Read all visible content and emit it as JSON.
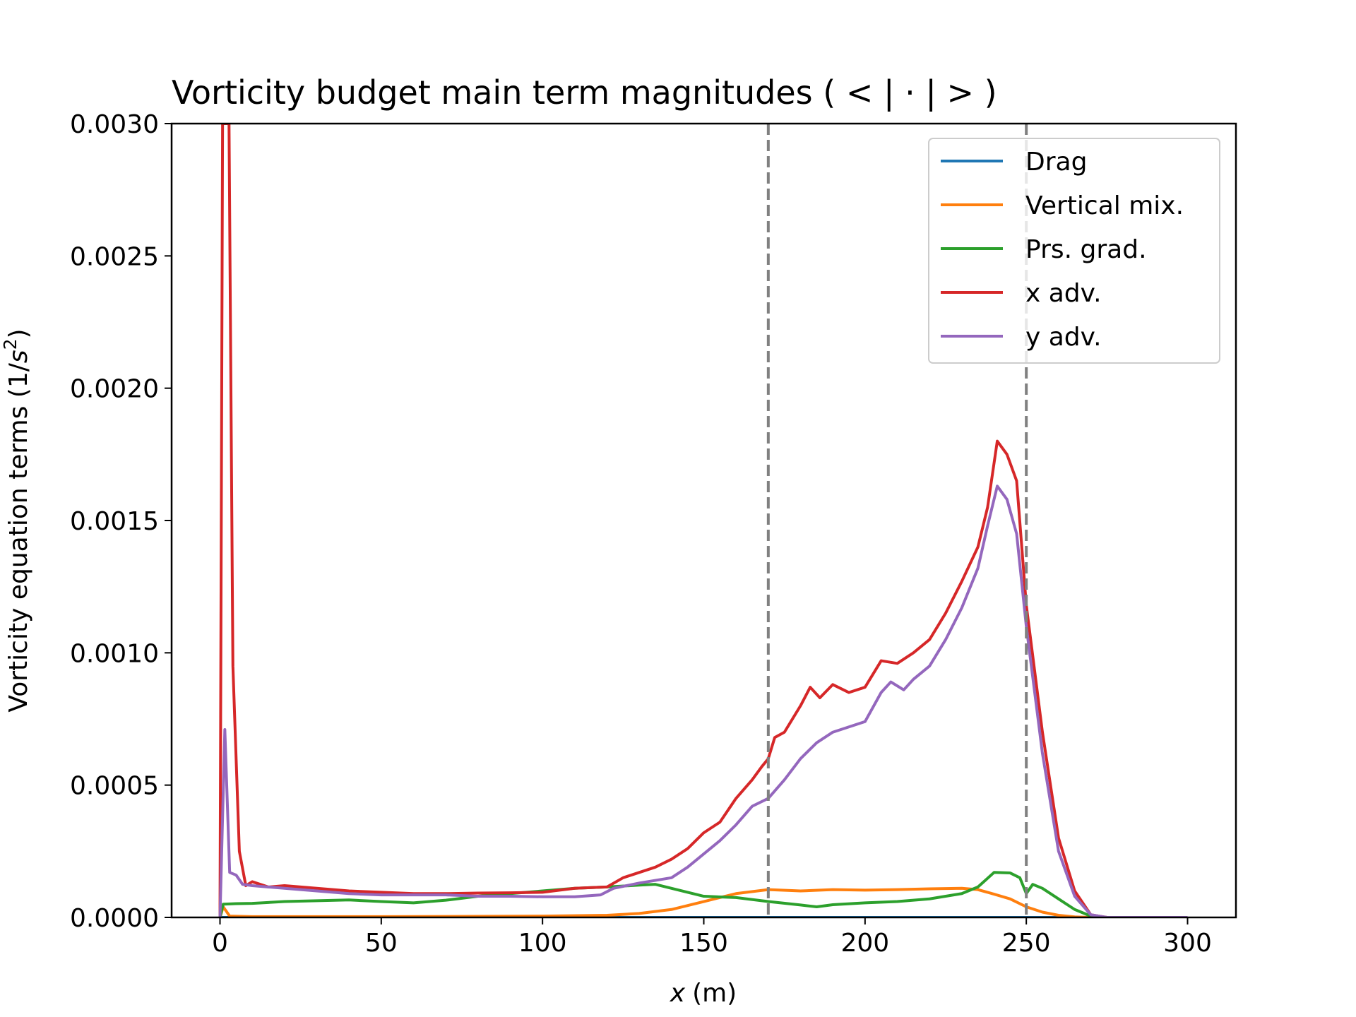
{
  "chart_data": {
    "type": "line",
    "title": "Vorticity budget main term magnitudes ( < | · | > )",
    "xlabel_var": "x",
    "xlabel_unit": "(m)",
    "ylabel_main": "Vorticity equation terms (1/",
    "ylabel_var": "s",
    "ylabel_exp": "2",
    "ylabel_end": ")",
    "xlim": [
      -15,
      315
    ],
    "ylim": [
      0,
      0.003
    ],
    "x_ticks": [
      0,
      50,
      100,
      150,
      200,
      250,
      300
    ],
    "x_tick_labels": [
      "0",
      "50",
      "100",
      "150",
      "200",
      "250",
      "300"
    ],
    "y_ticks": [
      0,
      0.0005,
      0.001,
      0.0015,
      0.002,
      0.0025,
      0.003
    ],
    "y_tick_labels": [
      "0.0000",
      "0.0005",
      "0.0010",
      "0.0015",
      "0.0020",
      "0.0025",
      "0.0030"
    ],
    "vertical_lines": [
      170,
      250
    ],
    "grid": false,
    "legend_position": "top-right",
    "series": [
      {
        "name": "Drag",
        "color": "#1f77b4",
        "points": [
          [
            0,
            0
          ],
          [
            300,
            0
          ]
        ]
      },
      {
        "name": "Vertical mix.",
        "color": "#ff7f0e",
        "points": [
          [
            0,
            0
          ],
          [
            1,
            4e-05
          ],
          [
            3,
            5e-06
          ],
          [
            10,
            3e-06
          ],
          [
            50,
            3e-06
          ],
          [
            100,
            5e-06
          ],
          [
            120,
            8e-06
          ],
          [
            130,
            1.5e-05
          ],
          [
            140,
            3e-05
          ],
          [
            150,
            6e-05
          ],
          [
            160,
            9e-05
          ],
          [
            170,
            0.000105
          ],
          [
            180,
            0.0001
          ],
          [
            190,
            0.000105
          ],
          [
            200,
            0.000103
          ],
          [
            210,
            0.000105
          ],
          [
            220,
            0.000108
          ],
          [
            230,
            0.00011
          ],
          [
            235,
            0.000105
          ],
          [
            240,
            8.8e-05
          ],
          [
            245,
            7e-05
          ],
          [
            250,
            4e-05
          ],
          [
            255,
            2e-05
          ],
          [
            260,
            8e-06
          ],
          [
            265,
            2e-06
          ],
          [
            270,
            0
          ],
          [
            300,
            0
          ]
        ]
      },
      {
        "name": "Prs. grad.",
        "color": "#2ca02c",
        "points": [
          [
            0,
            0
          ],
          [
            1,
            5e-05
          ],
          [
            5,
            5.2e-05
          ],
          [
            10,
            5.3e-05
          ],
          [
            20,
            6e-05
          ],
          [
            30,
            6.3e-05
          ],
          [
            40,
            6.6e-05
          ],
          [
            50,
            6e-05
          ],
          [
            60,
            5.5e-05
          ],
          [
            70,
            6.5e-05
          ],
          [
            80,
            8e-05
          ],
          [
            90,
            9e-05
          ],
          [
            100,
            0.0001
          ],
          [
            110,
            0.00011
          ],
          [
            120,
            0.000115
          ],
          [
            130,
            0.000122
          ],
          [
            135,
            0.000125
          ],
          [
            140,
            0.00011
          ],
          [
            150,
            8e-05
          ],
          [
            160,
            7.5e-05
          ],
          [
            170,
            6e-05
          ],
          [
            180,
            4.7e-05
          ],
          [
            185,
            4e-05
          ],
          [
            190,
            4.8e-05
          ],
          [
            200,
            5.5e-05
          ],
          [
            210,
            6e-05
          ],
          [
            220,
            7e-05
          ],
          [
            230,
            9e-05
          ],
          [
            235,
            0.000115
          ],
          [
            240,
            0.00017
          ],
          [
            245,
            0.000168
          ],
          [
            248,
            0.00015
          ],
          [
            250,
            9e-05
          ],
          [
            252,
            0.000125
          ],
          [
            255,
            0.00011
          ],
          [
            260,
            7e-05
          ],
          [
            265,
            3e-05
          ],
          [
            270,
            5e-06
          ],
          [
            275,
            0
          ],
          [
            300,
            0
          ]
        ]
      },
      {
        "name": "x adv.",
        "color": "#d62728",
        "points": [
          [
            0,
            0
          ],
          [
            0.8,
            0.003
          ],
          [
            2.8,
            0.003
          ],
          [
            4,
            0.00095
          ],
          [
            6,
            0.00025
          ],
          [
            8,
            0.00012
          ],
          [
            10,
            0.000135
          ],
          [
            15,
            0.000115
          ],
          [
            20,
            0.00012
          ],
          [
            30,
            0.00011
          ],
          [
            40,
            0.0001
          ],
          [
            50,
            9.5e-05
          ],
          [
            60,
            9e-05
          ],
          [
            70,
            9e-05
          ],
          [
            80,
            9.2e-05
          ],
          [
            90,
            9.3e-05
          ],
          [
            100,
            9.5e-05
          ],
          [
            110,
            0.00011
          ],
          [
            120,
            0.000115
          ],
          [
            125,
            0.00015
          ],
          [
            130,
            0.00017
          ],
          [
            135,
            0.00019
          ],
          [
            140,
            0.00022
          ],
          [
            145,
            0.00026
          ],
          [
            150,
            0.00032
          ],
          [
            155,
            0.00036
          ],
          [
            160,
            0.00045
          ],
          [
            165,
            0.00052
          ],
          [
            168,
            0.00057
          ],
          [
            170,
            0.0006
          ],
          [
            172,
            0.00068
          ],
          [
            175,
            0.0007
          ],
          [
            180,
            0.0008
          ],
          [
            183,
            0.00087
          ],
          [
            186,
            0.00083
          ],
          [
            190,
            0.00088
          ],
          [
            195,
            0.00085
          ],
          [
            200,
            0.00087
          ],
          [
            205,
            0.00097
          ],
          [
            210,
            0.00096
          ],
          [
            215,
            0.001
          ],
          [
            220,
            0.00105
          ],
          [
            225,
            0.00115
          ],
          [
            230,
            0.00127
          ],
          [
            235,
            0.0014
          ],
          [
            238,
            0.00155
          ],
          [
            241,
            0.0018
          ],
          [
            244,
            0.00175
          ],
          [
            247,
            0.00165
          ],
          [
            250,
            0.00118
          ],
          [
            255,
            0.0007
          ],
          [
            260,
            0.0003
          ],
          [
            265,
            0.0001
          ],
          [
            270,
            1e-05
          ],
          [
            275,
            0
          ],
          [
            300,
            0
          ]
        ]
      },
      {
        "name": "y adv.",
        "color": "#9467bd",
        "points": [
          [
            0,
            0
          ],
          [
            1.5,
            0.00071
          ],
          [
            3,
            0.00017
          ],
          [
            5,
            0.00016
          ],
          [
            7,
            0.000125
          ],
          [
            10,
            0.00012
          ],
          [
            20,
            0.00011
          ],
          [
            30,
            0.0001
          ],
          [
            40,
            9e-05
          ],
          [
            50,
            8.5e-05
          ],
          [
            60,
            8.5e-05
          ],
          [
            70,
            8.5e-05
          ],
          [
            80,
            8e-05
          ],
          [
            90,
            8e-05
          ],
          [
            100,
            7.8e-05
          ],
          [
            110,
            7.8e-05
          ],
          [
            118,
            8.5e-05
          ],
          [
            122,
            0.00011
          ],
          [
            130,
            0.00013
          ],
          [
            135,
            0.00014
          ],
          [
            140,
            0.00015
          ],
          [
            145,
            0.00019
          ],
          [
            150,
            0.00024
          ],
          [
            155,
            0.00029
          ],
          [
            160,
            0.00035
          ],
          [
            165,
            0.00042
          ],
          [
            170,
            0.00045
          ],
          [
            175,
            0.00052
          ],
          [
            180,
            0.0006
          ],
          [
            185,
            0.00066
          ],
          [
            190,
            0.0007
          ],
          [
            195,
            0.00072
          ],
          [
            200,
            0.00074
          ],
          [
            205,
            0.00085
          ],
          [
            208,
            0.00089
          ],
          [
            212,
            0.00086
          ],
          [
            215,
            0.0009
          ],
          [
            220,
            0.00095
          ],
          [
            225,
            0.00105
          ],
          [
            230,
            0.00117
          ],
          [
            235,
            0.00132
          ],
          [
            238,
            0.00148
          ],
          [
            241,
            0.00163
          ],
          [
            244,
            0.00158
          ],
          [
            247,
            0.00145
          ],
          [
            250,
            0.0011
          ],
          [
            255,
            0.00062
          ],
          [
            260,
            0.00025
          ],
          [
            265,
            8e-05
          ],
          [
            270,
            1e-05
          ],
          [
            275,
            0
          ],
          [
            300,
            0
          ]
        ]
      }
    ]
  }
}
